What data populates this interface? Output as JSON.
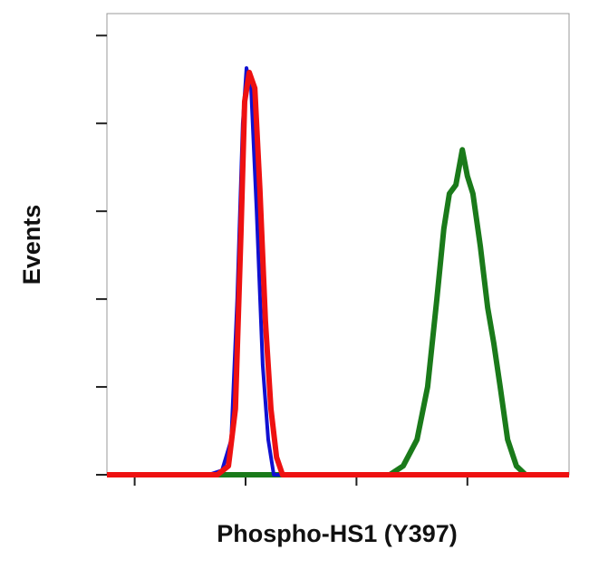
{
  "chart_data": {
    "type": "line",
    "xlabel": "Phospho-HS1 (Y397)",
    "ylabel": "Events",
    "xlim": [
      0,
      100
    ],
    "xticks": [
      6,
      30,
      54,
      78
    ],
    "ylim": [
      0,
      105
    ],
    "yticks": [
      0,
      20,
      40,
      60,
      80,
      100
    ],
    "series": [
      {
        "color": "#1a7a1a",
        "x": [
          0,
          61.2,
          64.1,
          67.1,
          69.4,
          71.4,
          72.9,
          74.1,
          75.5,
          76.9,
          78.0,
          79.2,
          80.8,
          82.4,
          83.7,
          85.1,
          86.7,
          88.6,
          90.6,
          100
        ],
        "values": [
          0,
          0,
          2,
          8,
          20,
          40,
          56,
          64,
          66,
          74,
          68,
          64,
          52,
          38,
          30,
          20,
          8,
          2,
          0,
          0
        ]
      },
      {
        "color": "#1010d0",
        "x": [
          0,
          22.0,
          24.9,
          26.9,
          28.2,
          29.4,
          30.2,
          31.2,
          32.4,
          33.7,
          34.9,
          36.1,
          100
        ],
        "values": [
          0,
          0,
          1,
          8,
          40,
          80,
          92.6,
          88,
          60,
          25,
          8,
          0,
          0
        ]
      },
      {
        "color": "#ee1111",
        "x": [
          0,
          23.9,
          26.3,
          27.8,
          29.0,
          29.8,
          30.8,
          32.0,
          33.1,
          34.3,
          35.5,
          36.7,
          38.0,
          100
        ],
        "values": [
          0,
          0,
          2,
          15,
          55,
          85,
          91.6,
          88,
          65,
          35,
          15,
          4,
          0,
          0
        ]
      }
    ]
  }
}
